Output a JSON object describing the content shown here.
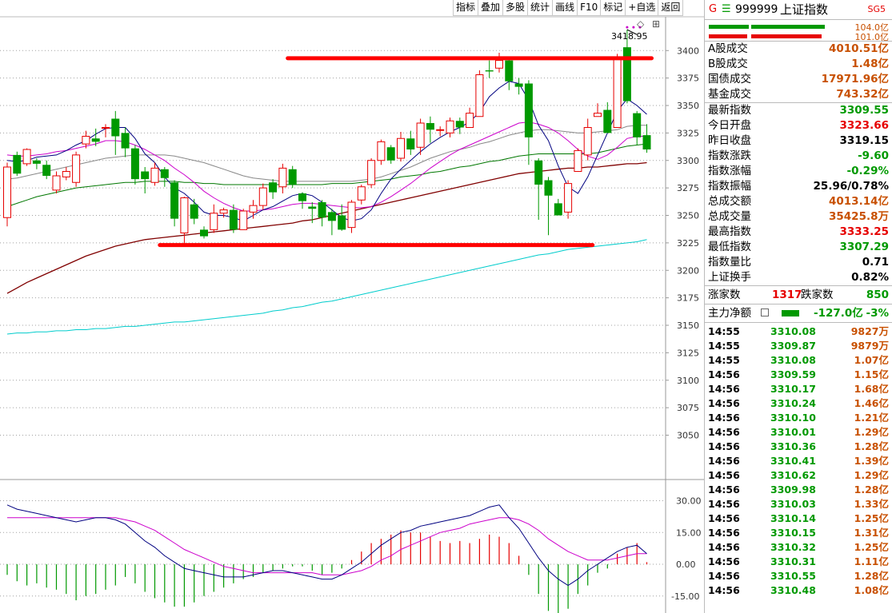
{
  "toolbar": {
    "buttons": [
      "指标",
      "叠加",
      "多股",
      "统计",
      "画线",
      "F10",
      "标记",
      "+自选",
      "返回"
    ]
  },
  "chart": {
    "high_label": "3418.95",
    "diamond": "◇",
    "settings": "⊞",
    "price_axis": [
      "3400",
      "3375",
      "3350",
      "3325",
      "3300",
      "3275",
      "3250",
      "3225",
      "3200",
      "3175",
      "3150",
      "3125",
      "3100",
      "3075",
      "3050"
    ],
    "macd_axis": [
      "30.00",
      "15.00",
      "0.00",
      "-15.00"
    ],
    "colors": {
      "up": "#e60000",
      "down": "#009900",
      "ma5": "#000080",
      "ma10": "#cc00cc",
      "ma20": "#888888",
      "ma30": "#007700",
      "ma60": "#800000",
      "ma120": "#00cccc",
      "annotation": "#ff0000"
    }
  },
  "chart_data": {
    "type": "candlestick",
    "ylim": [
      3030,
      3430
    ],
    "candles": [
      [
        3248,
        3294,
        3240,
        3298
      ],
      [
        3305,
        3288,
        3286,
        3308
      ],
      [
        3297,
        3310,
        3295,
        3311
      ],
      [
        3300,
        3297,
        3292,
        3302
      ],
      [
        3296,
        3286,
        3283,
        3300
      ],
      [
        3273,
        3286,
        3270,
        3290
      ],
      [
        3285,
        3290,
        3282,
        3294
      ],
      [
        3280,
        3305,
        3276,
        3308
      ],
      [
        3315,
        3322,
        3311,
        3327
      ],
      [
        3320,
        3317,
        3313,
        3329
      ],
      [
        3330,
        3330,
        3321,
        3333
      ],
      [
        3338,
        3322,
        3305,
        3345
      ],
      [
        3325,
        3311,
        3303,
        3330
      ],
      [
        3311,
        3283,
        3278,
        3314
      ],
      [
        3290,
        3283,
        3270,
        3294
      ],
      [
        3280,
        3293,
        3277,
        3298
      ],
      [
        3292,
        3284,
        3276,
        3294
      ],
      [
        3280,
        3247,
        3240,
        3282
      ],
      [
        3234,
        3266,
        3223,
        3267
      ],
      [
        3260,
        3247,
        3242,
        3265
      ],
      [
        3237,
        3231,
        3229,
        3240
      ],
      [
        3237,
        3252,
        3234,
        3260
      ],
      [
        3252,
        3255,
        3248,
        3257
      ],
      [
        3255,
        3237,
        3234,
        3260
      ],
      [
        3237,
        3254,
        3237,
        3256
      ],
      [
        3253,
        3259,
        3247,
        3264
      ],
      [
        3259,
        3275,
        3255,
        3279
      ],
      [
        3280,
        3271,
        3265,
        3283
      ],
      [
        3276,
        3293,
        3270,
        3297
      ],
      [
        3292,
        3278,
        3275,
        3295
      ],
      [
        3270,
        3263,
        3256,
        3271
      ],
      [
        3258,
        3256,
        3243,
        3262
      ],
      [
        3262,
        3248,
        3240,
        3264
      ],
      [
        3253,
        3245,
        3232,
        3256
      ],
      [
        3250,
        3237,
        3236,
        3260
      ],
      [
        3239,
        3262,
        3234,
        3264
      ],
      [
        3264,
        3276,
        3260,
        3278
      ],
      [
        3278,
        3300,
        3275,
        3302
      ],
      [
        3300,
        3317,
        3296,
        3319
      ],
      [
        3312,
        3300,
        3297,
        3314
      ],
      [
        3302,
        3320,
        3299,
        3326
      ],
      [
        3320,
        3310,
        3305,
        3327
      ],
      [
        3312,
        3334,
        3305,
        3338
      ],
      [
        3334,
        3328,
        3316,
        3340
      ],
      [
        3328,
        3328,
        3322,
        3331
      ],
      [
        3325,
        3336,
        3321,
        3339
      ],
      [
        3336,
        3330,
        3324,
        3339
      ],
      [
        3330,
        3343,
        3330,
        3348
      ],
      [
        3340,
        3378,
        3340,
        3382
      ],
      [
        3382,
        3381,
        3375,
        3391
      ],
      [
        3384,
        3391,
        3380,
        3398
      ],
      [
        3391,
        3372,
        3364,
        3393
      ],
      [
        3370,
        3367,
        3360,
        3375
      ],
      [
        3370,
        3321,
        3296,
        3373
      ],
      [
        3300,
        3278,
        3246,
        3302
      ],
      [
        3282,
        3268,
        3232,
        3285
      ],
      [
        3261,
        3250,
        3254,
        3265
      ],
      [
        3253,
        3279,
        3247,
        3282
      ],
      [
        3290,
        3309,
        3290,
        3311
      ],
      [
        3305,
        3330,
        3300,
        3338
      ],
      [
        3340,
        3343,
        3341,
        3352
      ],
      [
        3346,
        3325,
        3327,
        3353
      ],
      [
        3330,
        3392,
        3330,
        3397
      ],
      [
        3403,
        3354,
        3352,
        3419
      ],
      [
        3343,
        3321,
        3314,
        3345
      ],
      [
        3323,
        3310,
        3307,
        3333
      ]
    ],
    "ma5": [
      3300,
      3299,
      3300,
      3303,
      3304,
      3305,
      3309,
      3314,
      3318,
      3324,
      3329,
      3330,
      3330,
      3320,
      3306,
      3298,
      3285,
      3275,
      3270,
      3262,
      3253,
      3250,
      3250,
      3248,
      3245,
      3250,
      3255,
      3258,
      3263,
      3268,
      3270,
      3268,
      3262,
      3255,
      3248,
      3245,
      3247,
      3255,
      3270,
      3283,
      3292,
      3300,
      3308,
      3315,
      3321,
      3326,
      3330,
      3335,
      3344,
      3358,
      3366,
      3372,
      3370,
      3355,
      3332,
      3318,
      3295,
      3276,
      3270,
      3285,
      3305,
      3325,
      3345,
      3356,
      3350,
      3342
    ],
    "ma10": [
      3305,
      3304,
      3304,
      3305,
      3306,
      3308,
      3309,
      3311,
      3313,
      3315,
      3318,
      3318,
      3317,
      3314,
      3310,
      3305,
      3300,
      3293,
      3287,
      3280,
      3272,
      3266,
      3261,
      3257,
      3254,
      3254,
      3255,
      3256,
      3258,
      3260,
      3261,
      3261,
      3260,
      3259,
      3258,
      3257,
      3257,
      3258,
      3262,
      3267,
      3273,
      3279,
      3286,
      3293,
      3299,
      3305,
      3310,
      3314,
      3318,
      3322,
      3326,
      3330,
      3334,
      3335,
      3333,
      3330,
      3325,
      3318,
      3310,
      3304,
      3301,
      3305,
      3312,
      3320,
      3322,
      3322
    ],
    "ma20": [
      3283,
      3284,
      3286,
      3288,
      3290,
      3292,
      3294,
      3296,
      3298,
      3300,
      3302,
      3303,
      3304,
      3305,
      3305,
      3305,
      3305,
      3304,
      3302,
      3300,
      3298,
      3295,
      3292,
      3289,
      3286,
      3284,
      3283,
      3282,
      3281,
      3281,
      3281,
      3281,
      3281,
      3281,
      3281,
      3281,
      3282,
      3283,
      3285,
      3288,
      3291,
      3294,
      3298,
      3302,
      3305,
      3308,
      3310,
      3312,
      3315,
      3317,
      3320,
      3323,
      3325,
      3327,
      3328,
      3328,
      3327,
      3326,
      3325,
      3325,
      3326,
      3327,
      3328,
      3331,
      3332,
      3332
    ],
    "ma30": [
      3258,
      3261,
      3264,
      3267,
      3269,
      3271,
      3273,
      3275,
      3276,
      3277,
      3278,
      3279,
      3280,
      3280,
      3281,
      3281,
      3281,
      3281,
      3280,
      3280,
      3279,
      3279,
      3278,
      3278,
      3278,
      3278,
      3278,
      3278,
      3278,
      3278,
      3278,
      3278,
      3278,
      3279,
      3279,
      3279,
      3280,
      3281,
      3282,
      3283,
      3285,
      3286,
      3287,
      3289,
      3290,
      3292,
      3294,
      3295,
      3297,
      3299,
      3300,
      3302,
      3304,
      3305,
      3306,
      3306,
      3306,
      3306,
      3306,
      3306,
      3307,
      3309,
      3311,
      3313,
      3314,
      3315
    ],
    "ma60": [
      3179,
      3184,
      3189,
      3193,
      3197,
      3201,
      3205,
      3209,
      3213,
      3216,
      3219,
      3222,
      3224,
      3226,
      3228,
      3229,
      3230,
      3231,
      3232,
      3233,
      3234,
      3235,
      3236,
      3237,
      3238,
      3239,
      3240,
      3241,
      3242,
      3243,
      3245,
      3246,
      3248,
      3250,
      3252,
      3254,
      3256,
      3258,
      3260,
      3262,
      3264,
      3266,
      3268,
      3270,
      3272,
      3274,
      3276,
      3278,
      3280,
      3282,
      3284,
      3286,
      3288,
      3289,
      3290,
      3291,
      3292,
      3293,
      3293,
      3294,
      3294,
      3295,
      3296,
      3297,
      3297,
      3298
    ],
    "ma120": [
      3142,
      3143,
      3143,
      3144,
      3144,
      3145,
      3145,
      3146,
      3146,
      3147,
      3147,
      3148,
      3149,
      3149,
      3150,
      3151,
      3152,
      3153,
      3153,
      3154,
      3155,
      3156,
      3157,
      3158,
      3159,
      3160,
      3161,
      3163,
      3164,
      3166,
      3167,
      3169,
      3171,
      3172,
      3174,
      3176,
      3178,
      3180,
      3182,
      3184,
      3186,
      3188,
      3190,
      3192,
      3194,
      3196,
      3198,
      3200,
      3202,
      3204,
      3206,
      3208,
      3210,
      3212,
      3214,
      3215,
      3217,
      3219,
      3220,
      3221,
      3222,
      3223,
      3224,
      3225,
      3226,
      3228
    ],
    "resistance": {
      "value": 3393,
      "from": 29,
      "to": 65
    },
    "support": {
      "value": 3223,
      "from": 16,
      "to": 59
    },
    "macd": {
      "ylim": [
        -23,
        40
      ],
      "dif": [
        28,
        26,
        25,
        24,
        23,
        22,
        21,
        20,
        21,
        22,
        22,
        21,
        19,
        15,
        11,
        8,
        4,
        1,
        -2,
        -3,
        -4,
        -5,
        -6,
        -6,
        -6,
        -5,
        -4,
        -3,
        -3,
        -4,
        -5,
        -6,
        -7,
        -7,
        -5,
        -2,
        1,
        5,
        9,
        12,
        15,
        16,
        18,
        19,
        20,
        21,
        22,
        23,
        25,
        27,
        28,
        22,
        17,
        10,
        3,
        -3,
        -7,
        -10,
        -7,
        -3,
        0,
        3,
        6,
        8,
        9,
        5
      ],
      "dea": [
        22,
        22,
        22,
        22,
        22,
        22,
        22,
        22,
        22,
        22,
        22,
        22,
        21,
        20,
        18,
        16,
        13,
        10,
        7,
        5,
        3,
        1,
        -1,
        -2,
        -3,
        -4,
        -4,
        -4,
        -4,
        -4,
        -4,
        -4,
        -5,
        -5,
        -5,
        -4,
        -3,
        -1,
        2,
        4,
        7,
        9,
        11,
        13,
        15,
        16,
        17,
        19,
        20,
        21,
        22,
        22,
        21,
        19,
        16,
        12,
        9,
        6,
        4,
        2,
        2,
        2,
        3,
        4,
        5,
        5
      ],
      "hist": [
        -5,
        -8,
        -10,
        -9,
        -11,
        -12,
        -14,
        -17,
        -15,
        -14,
        -12,
        -10,
        -6,
        -9,
        -13,
        -16,
        -18,
        -20,
        -20,
        -18,
        -15,
        -13,
        -11,
        -9,
        -7,
        -6,
        -4,
        -3,
        -2,
        -1,
        -1,
        -3,
        -5,
        -4,
        -2,
        2,
        6,
        10,
        12,
        14,
        16,
        15,
        15,
        13,
        11,
        10,
        11,
        10,
        12,
        14,
        13,
        10,
        4,
        -5,
        -14,
        -22,
        -25,
        -21,
        -14,
        -10,
        -4,
        -2,
        5,
        8,
        10,
        1
      ]
    }
  },
  "side": {
    "header": {
      "g": "G",
      "icon": "☰",
      "code": "999999",
      "name": "上证指数",
      "tag": "SG5"
    },
    "bars": [
      {
        "value": "104.0亿"
      },
      {
        "value": "101.0亿"
      }
    ],
    "volumes": [
      {
        "label": "A股成交",
        "value": "4010.51亿"
      },
      {
        "label": "B股成交",
        "value": "1.48亿"
      },
      {
        "label": "国债成交",
        "value": "17971.96亿"
      },
      {
        "label": "基金成交",
        "value": "743.32亿"
      }
    ],
    "stats": [
      {
        "label": "最新指数",
        "value": "3309.55",
        "color": "green"
      },
      {
        "label": "今日开盘",
        "value": "3323.66",
        "color": "red"
      },
      {
        "label": "昨日收盘",
        "value": "3319.15",
        "color": "black"
      },
      {
        "label": "指数涨跌",
        "value": "-9.60",
        "color": "green"
      },
      {
        "label": "指数涨幅",
        "value": "-0.29%",
        "color": "green"
      },
      {
        "label": "指数振幅",
        "value": "25.96/0.78%",
        "color": "black"
      },
      {
        "label": "总成交额",
        "value": "4013.14亿",
        "color": "orange"
      },
      {
        "label": "总成交量",
        "value": "35425.8万",
        "color": "orange"
      },
      {
        "label": "最高指数",
        "value": "3333.25",
        "color": "red"
      },
      {
        "label": "最低指数",
        "value": "3307.29",
        "color": "green"
      },
      {
        "label": "指数量比",
        "value": "0.71",
        "color": "black"
      },
      {
        "label": "上证换手",
        "value": "0.82%",
        "color": "black"
      }
    ],
    "breadth": {
      "up_label": "涨家数",
      "up": "1317",
      "down_label": "跌家数",
      "down": "850"
    },
    "capital": {
      "label": "主力净额",
      "value": "-127.0亿",
      "pct": "-3%"
    },
    "ticks": [
      {
        "time": "14:55",
        "price": "3310.08",
        "amount": "9827万"
      },
      {
        "time": "14:55",
        "price": "3309.87",
        "amount": "9879万"
      },
      {
        "time": "14:55",
        "price": "3310.08",
        "amount": "1.07亿"
      },
      {
        "time": "14:56",
        "price": "3309.59",
        "amount": "1.15亿"
      },
      {
        "time": "14:56",
        "price": "3310.17",
        "amount": "1.68亿"
      },
      {
        "time": "14:56",
        "price": "3310.24",
        "amount": "1.46亿"
      },
      {
        "time": "14:56",
        "price": "3310.10",
        "amount": "1.21亿"
      },
      {
        "time": "14:56",
        "price": "3310.01",
        "amount": "1.29亿"
      },
      {
        "time": "14:56",
        "price": "3310.36",
        "amount": "1.28亿"
      },
      {
        "time": "14:56",
        "price": "3310.41",
        "amount": "1.39亿"
      },
      {
        "time": "14:56",
        "price": "3310.62",
        "amount": "1.29亿"
      },
      {
        "time": "14:56",
        "price": "3309.98",
        "amount": "1.28亿"
      },
      {
        "time": "14:56",
        "price": "3310.03",
        "amount": "1.33亿"
      },
      {
        "time": "14:56",
        "price": "3310.14",
        "amount": "1.25亿"
      },
      {
        "time": "14:56",
        "price": "3310.15",
        "amount": "1.31亿"
      },
      {
        "time": "14:56",
        "price": "3310.32",
        "amount": "1.25亿"
      },
      {
        "time": "14:56",
        "price": "3310.31",
        "amount": "1.11亿"
      },
      {
        "time": "14:56",
        "price": "3310.55",
        "amount": "1.28亿"
      },
      {
        "time": "14:56",
        "price": "3310.48",
        "amount": "1.08亿"
      }
    ]
  }
}
